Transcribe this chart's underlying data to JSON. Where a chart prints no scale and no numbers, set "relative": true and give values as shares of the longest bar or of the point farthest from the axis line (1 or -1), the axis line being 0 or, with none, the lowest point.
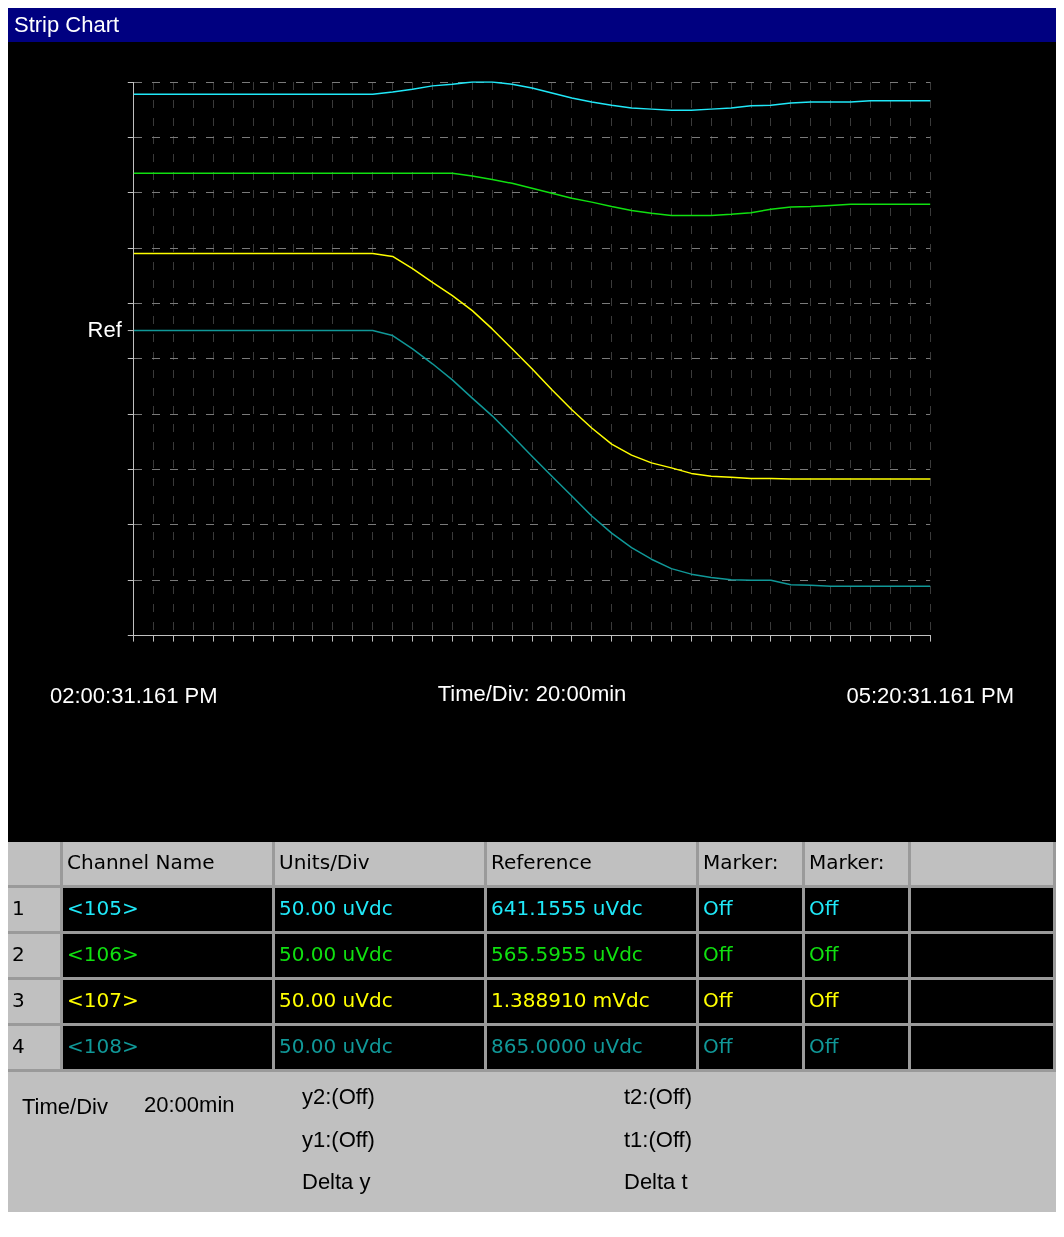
{
  "chart_data": {
    "type": "line",
    "title": "Strip Chart",
    "xlabel": "Time/Div: 20:00min",
    "relative": true,
    "grid": true,
    "legend": "bottom",
    "marker": "none",
    "line_style": "solid",
    "categories": [
      "02:00:31.161 PM",
      null,
      null,
      null,
      null,
      null,
      null,
      null,
      null,
      null,
      null,
      null,
      null,
      null,
      null,
      null,
      null,
      null,
      null,
      null,
      null,
      null,
      null,
      null,
      null,
      null,
      null,
      null,
      null,
      null,
      null,
      null,
      null,
      null,
      null,
      null,
      null,
      null,
      null,
      null,
      "05:20:31.161 PM"
    ],
    "ref_lines": [
      {
        "axis": "y",
        "value": 0.551,
        "label": "Ref"
      }
    ],
    "series": [
      {
        "name": "<105>",
        "color": "#20e8f8",
        "values": [
          0.978,
          0.978,
          0.978,
          0.978,
          0.978,
          0.978,
          0.978,
          0.978,
          0.978,
          0.978,
          0.978,
          0.978,
          0.978,
          0.982,
          0.987,
          0.993,
          0.996,
          1,
          1,
          0.996,
          0.989,
          0.98,
          0.971,
          0.964,
          0.958,
          0.953,
          0.951,
          0.949,
          0.949,
          0.951,
          0.953,
          0.957,
          0.958,
          0.962,
          0.964,
          0.964,
          0.964,
          0.966,
          0.966,
          0.966,
          0.966
        ]
      },
      {
        "name": "<106>",
        "color": "#10e010",
        "values": [
          0.835,
          0.835,
          0.835,
          0.835,
          0.835,
          0.835,
          0.835,
          0.835,
          0.835,
          0.835,
          0.835,
          0.835,
          0.835,
          0.835,
          0.835,
          0.835,
          0.835,
          0.83,
          0.824,
          0.817,
          0.808,
          0.799,
          0.79,
          0.783,
          0.775,
          0.768,
          0.763,
          0.759,
          0.759,
          0.759,
          0.761,
          0.764,
          0.77,
          0.774,
          0.775,
          0.777,
          0.779,
          0.779,
          0.779,
          0.779,
          0.779
        ]
      },
      {
        "name": "<107>",
        "color": "#ffff00",
        "values": [
          0.69,
          0.69,
          0.69,
          0.69,
          0.69,
          0.69,
          0.69,
          0.69,
          0.69,
          0.69,
          0.69,
          0.69,
          0.69,
          0.685,
          0.663,
          0.638,
          0.614,
          0.587,
          0.554,
          0.518,
          0.482,
          0.444,
          0.408,
          0.375,
          0.346,
          0.326,
          0.312,
          0.303,
          0.293,
          0.288,
          0.286,
          0.284,
          0.284,
          0.283,
          0.283,
          0.283,
          0.283,
          0.283,
          0.283,
          0.283,
          0.283
        ]
      },
      {
        "name": "<108>",
        "color": "#109898",
        "values": [
          0.551,
          0.551,
          0.551,
          0.551,
          0.551,
          0.551,
          0.551,
          0.551,
          0.551,
          0.551,
          0.551,
          0.551,
          0.551,
          0.542,
          0.518,
          0.491,
          0.462,
          0.429,
          0.397,
          0.361,
          0.324,
          0.288,
          0.252,
          0.216,
          0.185,
          0.159,
          0.138,
          0.121,
          0.111,
          0.105,
          0.101,
          0.1,
          0.1,
          0.092,
          0.091,
          0.089,
          0.089,
          0.089,
          0.089,
          0.089,
          0.089
        ]
      }
    ],
    "annotations": [
      "Channel Name",
      "Units/Div",
      "Reference",
      "Marker:",
      "Marker:",
      "1",
      "50.00 uVdc",
      "641.1555 uVdc",
      "Off",
      "Off",
      "2",
      "50.00 uVdc",
      "565.5955 uVdc",
      "Off",
      "Off",
      "3",
      "50.00 uVdc",
      "1.388910 mVdc",
      "Off",
      "Off",
      "4",
      "50.00 uVdc",
      "865.0000 uVdc",
      "Off",
      "Off",
      "Time/Div",
      "20:00min",
      "y2:(Off)",
      "t2:(Off)",
      "y1:(Off)",
      "t1:(Off)",
      "Delta y",
      "Delta t"
    ]
  }
}
